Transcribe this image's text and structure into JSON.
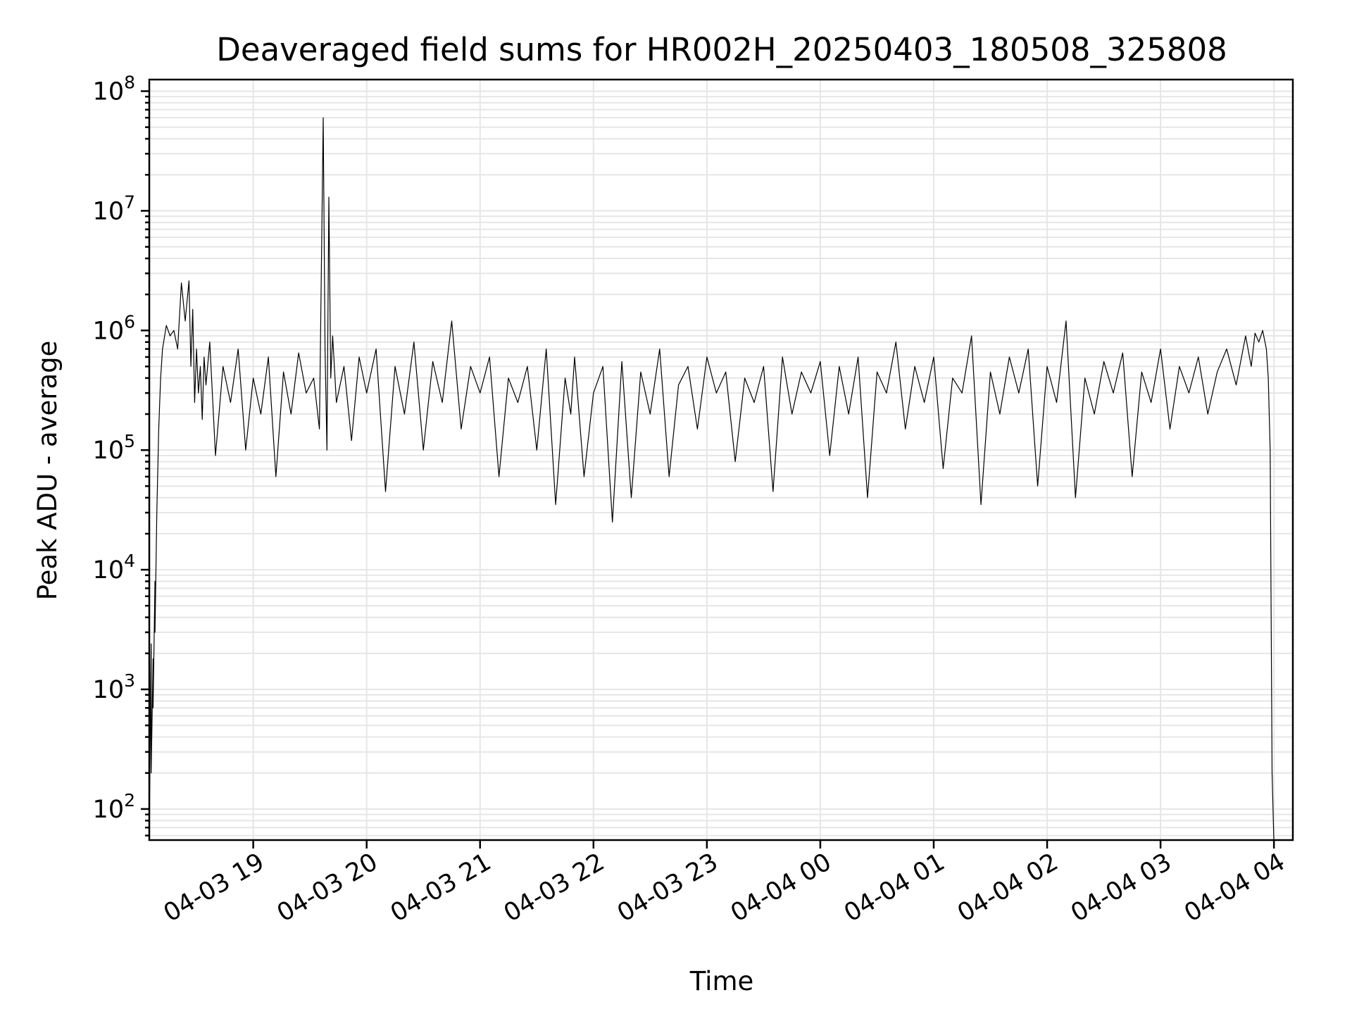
{
  "chart_data": {
    "type": "line",
    "title": "Deaveraged field sums for HR002H_20250403_180508_325808",
    "xlabel": "Time",
    "ylabel": "Peak ADU - average",
    "yscale": "log",
    "ylim": [
      55,
      125000000
    ],
    "y_ticks": [
      {
        "value": 100,
        "base": "10",
        "exp": "2"
      },
      {
        "value": 1000,
        "base": "10",
        "exp": "3"
      },
      {
        "value": 10000,
        "base": "10",
        "exp": "4"
      },
      {
        "value": 100000,
        "base": "10",
        "exp": "5"
      },
      {
        "value": 1000000,
        "base": "10",
        "exp": "6"
      },
      {
        "value": 10000000,
        "base": "10",
        "exp": "7"
      },
      {
        "value": 100000000,
        "base": "10",
        "exp": "8"
      }
    ],
    "xlim": [
      "2025-04-03 18:05",
      "2025-04-04 04:10"
    ],
    "x_ticks": [
      {
        "value": "2025-04-03 19:00",
        "label": "04-03 19"
      },
      {
        "value": "2025-04-03 20:00",
        "label": "04-03 20"
      },
      {
        "value": "2025-04-03 21:00",
        "label": "04-03 21"
      },
      {
        "value": "2025-04-03 22:00",
        "label": "04-03 22"
      },
      {
        "value": "2025-04-03 23:00",
        "label": "04-03 23"
      },
      {
        "value": "2025-04-04 00:00",
        "label": "04-04 00"
      },
      {
        "value": "2025-04-04 01:00",
        "label": "04-04 01"
      },
      {
        "value": "2025-04-04 02:00",
        "label": "04-04 02"
      },
      {
        "value": "2025-04-04 03:00",
        "label": "04-04 03"
      },
      {
        "value": "2025-04-04 04:00",
        "label": "04-04 04"
      }
    ],
    "grid": true,
    "legend": "none",
    "series": [
      {
        "color": "#000000",
        "x": [
          "2025-04-03 18:05",
          "2025-04-03 18:06",
          "2025-04-03 18:06",
          "2025-04-03 18:07",
          "2025-04-03 18:07",
          "2025-04-03 18:08",
          "2025-04-03 18:08",
          "2025-04-03 18:09",
          "2025-04-03 18:10",
          "2025-04-03 18:11",
          "2025-04-03 18:12",
          "2025-04-03 18:14",
          "2025-04-03 18:16",
          "2025-04-03 18:18",
          "2025-04-03 18:20",
          "2025-04-03 18:22",
          "2025-04-03 18:24",
          "2025-04-03 18:26",
          "2025-04-03 18:27",
          "2025-04-03 18:28",
          "2025-04-03 18:29",
          "2025-04-03 18:30",
          "2025-04-03 18:31",
          "2025-04-03 18:32",
          "2025-04-03 18:33",
          "2025-04-03 18:34",
          "2025-04-03 18:35",
          "2025-04-03 18:37",
          "2025-04-03 18:40",
          "2025-04-03 18:44",
          "2025-04-03 18:48",
          "2025-04-03 18:52",
          "2025-04-03 18:56",
          "2025-04-03 19:00",
          "2025-04-03 19:04",
          "2025-04-03 19:08",
          "2025-04-03 19:12",
          "2025-04-03 19:16",
          "2025-04-03 19:20",
          "2025-04-03 19:24",
          "2025-04-03 19:28",
          "2025-04-03 19:32",
          "2025-04-03 19:35",
          "2025-04-03 19:37",
          "2025-04-03 19:38",
          "2025-04-03 19:39",
          "2025-04-03 19:40",
          "2025-04-03 19:41",
          "2025-04-03 19:42",
          "2025-04-03 19:44",
          "2025-04-03 19:48",
          "2025-04-03 19:52",
          "2025-04-03 19:56",
          "2025-04-03 20:00",
          "2025-04-03 20:05",
          "2025-04-03 20:10",
          "2025-04-03 20:15",
          "2025-04-03 20:20",
          "2025-04-03 20:25",
          "2025-04-03 20:30",
          "2025-04-03 20:35",
          "2025-04-03 20:40",
          "2025-04-03 20:45",
          "2025-04-03 20:50",
          "2025-04-03 20:55",
          "2025-04-03 21:00",
          "2025-04-03 21:05",
          "2025-04-03 21:10",
          "2025-04-03 21:15",
          "2025-04-03 21:20",
          "2025-04-03 21:25",
          "2025-04-03 21:30",
          "2025-04-03 21:35",
          "2025-04-03 21:40",
          "2025-04-03 21:45",
          "2025-04-03 21:48",
          "2025-04-03 21:50",
          "2025-04-03 21:55",
          "2025-04-03 22:00",
          "2025-04-03 22:05",
          "2025-04-03 22:10",
          "2025-04-03 22:15",
          "2025-04-03 22:20",
          "2025-04-03 22:25",
          "2025-04-03 22:30",
          "2025-04-03 22:35",
          "2025-04-03 22:40",
          "2025-04-03 22:45",
          "2025-04-03 22:50",
          "2025-04-03 22:55",
          "2025-04-03 23:00",
          "2025-04-03 23:05",
          "2025-04-03 23:10",
          "2025-04-03 23:15",
          "2025-04-03 23:20",
          "2025-04-03 23:25",
          "2025-04-03 23:30",
          "2025-04-03 23:35",
          "2025-04-03 23:40",
          "2025-04-03 23:45",
          "2025-04-03 23:50",
          "2025-04-03 23:55",
          "2025-04-04 00:00",
          "2025-04-04 00:05",
          "2025-04-04 00:10",
          "2025-04-04 00:15",
          "2025-04-04 00:20",
          "2025-04-04 00:25",
          "2025-04-04 00:30",
          "2025-04-04 00:35",
          "2025-04-04 00:40",
          "2025-04-04 00:45",
          "2025-04-04 00:50",
          "2025-04-04 00:55",
          "2025-04-04 01:00",
          "2025-04-04 01:05",
          "2025-04-04 01:10",
          "2025-04-04 01:15",
          "2025-04-04 01:20",
          "2025-04-04 01:25",
          "2025-04-04 01:30",
          "2025-04-04 01:35",
          "2025-04-04 01:40",
          "2025-04-04 01:45",
          "2025-04-04 01:50",
          "2025-04-04 01:55",
          "2025-04-04 02:00",
          "2025-04-04 02:05",
          "2025-04-04 02:10",
          "2025-04-04 02:15",
          "2025-04-04 02:20",
          "2025-04-04 02:25",
          "2025-04-04 02:30",
          "2025-04-04 02:35",
          "2025-04-04 02:40",
          "2025-04-04 02:45",
          "2025-04-04 02:50",
          "2025-04-04 02:55",
          "2025-04-04 03:00",
          "2025-04-04 03:05",
          "2025-04-04 03:10",
          "2025-04-04 03:15",
          "2025-04-04 03:20",
          "2025-04-04 03:25",
          "2025-04-04 03:30",
          "2025-04-04 03:35",
          "2025-04-04 03:40",
          "2025-04-04 03:45",
          "2025-04-04 03:48",
          "2025-04-04 03:50",
          "2025-04-04 03:52",
          "2025-04-04 03:54",
          "2025-04-04 03:56",
          "2025-04-04 03:57",
          "2025-04-04 03:58",
          "2025-04-04 03:59",
          "2025-04-04 04:00"
        ],
        "y": [
          60,
          2400,
          200,
          1800,
          700,
          8000,
          3000,
          30000,
          150000,
          400000,
          700000,
          1100000,
          900000,
          1000000,
          700000,
          2500000,
          1200000,
          2600000,
          500000,
          1500000,
          250000,
          700000,
          300000,
          500000,
          180000,
          600000,
          350000,
          800000,
          90000,
          500000,
          250000,
          700000,
          100000,
          400000,
          200000,
          600000,
          60000,
          450000,
          200000,
          650000,
          300000,
          400000,
          150000,
          60000000,
          700000,
          100000,
          13000000,
          400000,
          900000,
          250000,
          500000,
          120000,
          600000,
          300000,
          700000,
          45000,
          500000,
          200000,
          800000,
          100000,
          550000,
          250000,
          1200000,
          150000,
          500000,
          300000,
          600000,
          60000,
          400000,
          250000,
          500000,
          100000,
          700000,
          35000,
          400000,
          200000,
          600000,
          60000,
          300000,
          500000,
          25000,
          550000,
          40000,
          450000,
          200000,
          700000,
          60000,
          350000,
          500000,
          150000,
          600000,
          300000,
          450000,
          80000,
          400000,
          250000,
          500000,
          45000,
          600000,
          200000,
          450000,
          300000,
          550000,
          90000,
          500000,
          200000,
          600000,
          40000,
          450000,
          300000,
          800000,
          150000,
          500000,
          250000,
          600000,
          70000,
          400000,
          300000,
          900000,
          35000,
          450000,
          200000,
          600000,
          300000,
          700000,
          50000,
          500000,
          250000,
          1200000,
          40000,
          400000,
          200000,
          550000,
          300000,
          650000,
          60000,
          450000,
          250000,
          700000,
          150000,
          500000,
          300000,
          600000,
          200000,
          450000,
          700000,
          350000,
          900000,
          500000,
          950000,
          800000,
          1000000,
          700000,
          400000,
          100000,
          200,
          50
        ]
      }
    ]
  }
}
